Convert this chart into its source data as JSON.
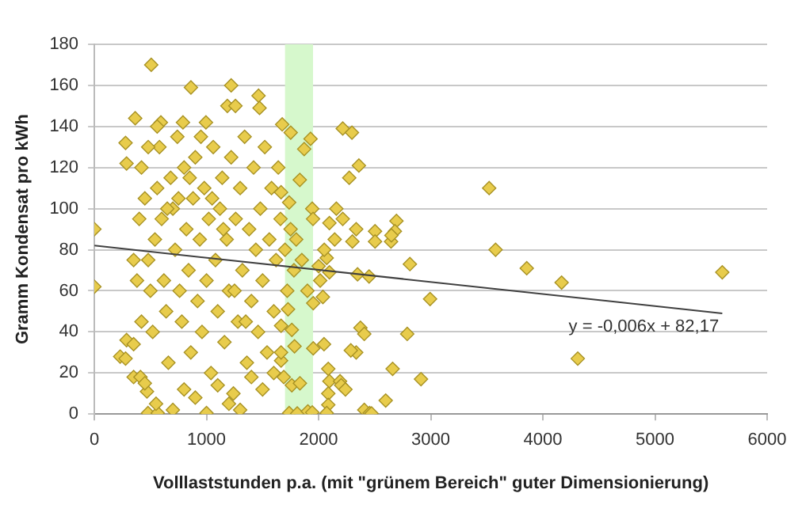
{
  "chart_data": {
    "type": "scatter",
    "xlabel": "Volllaststunden p.a. (mit \"grünem Bereich\" guter Dimensionierung)",
    "ylabel": "Gramm Kondensat pro kWh",
    "xlim": [
      0,
      6000
    ],
    "xticks": [
      0,
      1000,
      2000,
      3000,
      4000,
      5000,
      6000
    ],
    "ylim": [
      0,
      180
    ],
    "yticks": [
      0,
      20,
      40,
      60,
      80,
      100,
      120,
      140,
      160,
      180
    ],
    "grid": "y",
    "marker": "diamond",
    "bands": [
      {
        "axis": "x",
        "from": 1700,
        "to": 1950,
        "color": "#d6f8cc"
      }
    ],
    "annotations": [
      "y = -0,006x + 82,17"
    ],
    "series": [
      {
        "color": "#e8cc4c",
        "x": [
          0,
          0,
          507,
          861,
          1220,
          364,
          278,
          287,
          230,
          278,
          287,
          350,
          350,
          411,
          469,
          478,
          565,
          593,
          790,
          995,
          1186,
          1258,
          1464,
          1473,
          1675,
          1751,
          1928,
          1871,
          1832,
          2215,
          2297,
          2359,
          2273,
          1665,
          1737,
          1943,
          2158,
          2096,
          2215,
          2335,
          2301,
          2143,
          2694,
          2680,
          2646,
          2503,
          2503,
          2814,
          2072,
          2096,
          2014,
          2038,
          1952,
          1727,
          1665,
          1761,
          1785,
          1952,
          2048,
          2086,
          2096,
          2086,
          2086,
          2072,
          1737,
          1809,
          1904,
          1943,
          1689,
          1761,
          1833,
          1665,
          1665,
          2191,
          2201,
          2239,
          2335,
          2373,
          2407,
          2287,
          2407,
          2455,
          2598,
          2660,
          2790,
          2994,
          2913,
          2472,
          3521,
          3578,
          3856,
          4167,
          4311,
          5600,
          2649,
          2347,
          2450,
          400,
          420,
          450,
          480,
          500,
          520,
          540,
          560,
          580,
          600,
          620,
          640,
          660,
          680,
          700,
          720,
          740,
          760,
          780,
          800,
          820,
          840,
          860,
          880,
          900,
          920,
          940,
          960,
          980,
          1000,
          1020,
          1040,
          1060,
          1080,
          1100,
          1120,
          1140,
          1160,
          1180,
          1200,
          1220,
          1240,
          1260,
          1280,
          1300,
          1320,
          1340,
          1360,
          1380,
          1400,
          1420,
          1440,
          1460,
          1480,
          1500,
          1520,
          1540,
          1560,
          1580,
          1600,
          1620,
          1640,
          1660,
          1700,
          1720,
          1750,
          1780,
          1800,
          1850,
          1900,
          1950,
          2000,
          2050,
          450,
          550,
          700,
          800,
          900,
          1000,
          1100,
          1200,
          1300,
          1400,
          1500,
          1600,
          350,
          380,
          420,
          480,
          560,
          650,
          750,
          850,
          950,
          1050,
          1150,
          1250,
          1350
        ],
        "values": [
          90,
          62,
          170,
          159,
          160,
          144,
          132,
          122,
          28,
          27,
          36,
          34,
          18,
          18,
          11,
          0.5,
          0.5,
          142,
          142,
          142,
          150,
          150,
          155,
          149,
          141,
          137,
          134,
          129,
          114,
          139,
          137,
          121,
          115,
          108,
          103,
          100,
          100,
          93,
          95,
          90,
          84,
          85,
          94,
          89,
          84,
          89,
          84,
          73,
          76,
          69,
          65,
          57,
          54,
          51,
          43,
          41,
          33,
          32,
          34,
          22,
          16,
          10,
          4.5,
          0.5,
          0.5,
          0.3,
          1.3,
          0.8,
          18,
          14,
          15,
          26,
          30,
          16,
          14,
          12,
          30,
          42,
          39,
          31,
          2,
          0.5,
          6.6,
          22,
          39,
          56,
          17,
          0.3,
          110,
          80,
          71,
          64,
          27,
          69,
          87,
          68,
          67,
          95,
          120,
          105,
          75,
          60,
          40,
          85,
          110,
          130,
          95,
          65,
          50,
          25,
          115,
          100,
          80,
          135,
          60,
          45,
          120,
          90,
          70,
          30,
          105,
          125,
          55,
          85,
          40,
          110,
          65,
          95,
          20,
          130,
          75,
          50,
          100,
          115,
          35,
          85,
          60,
          125,
          10,
          95,
          45,
          110,
          70,
          135,
          25,
          90,
          55,
          120,
          80,
          40,
          100,
          65,
          130,
          30,
          85,
          110,
          50,
          75,
          120,
          95,
          80,
          60,
          90,
          70,
          85,
          75,
          60,
          95,
          72,
          80,
          15,
          5,
          2,
          12,
          8,
          0.5,
          14,
          5,
          2,
          18,
          12,
          20,
          75,
          65,
          45,
          130,
          140,
          100,
          105,
          115,
          135,
          105,
          90,
          60,
          45
        ]
      },
      {
        "type": "line",
        "color": "#404040",
        "marker": "none",
        "x": [
          0,
          5600
        ],
        "values": [
          82,
          49
        ]
      }
    ]
  }
}
